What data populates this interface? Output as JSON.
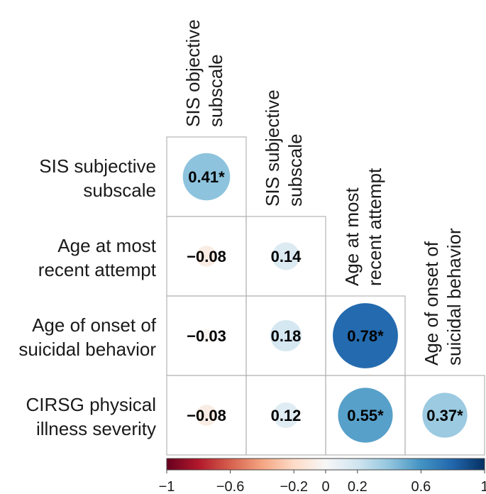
{
  "chart_data": {
    "type": "heatmap",
    "subtype": "correlation-circle-lower-triangle",
    "variables": [
      "SIS objective subscale",
      "SIS subjective subscale",
      "Age at most recent attempt",
      "Age of onset of suicidal behavior",
      "CIRSG physical illness severity"
    ],
    "row_labels": [
      [
        "SIS subjective",
        "subscale"
      ],
      [
        "Age at most",
        "recent attempt"
      ],
      [
        "Age of onset of",
        "suicidal behavior"
      ],
      [
        "CIRSG physical",
        "illness severity"
      ]
    ],
    "col_labels": [
      [
        "SIS objective",
        "subscale"
      ],
      [
        "SIS subjective",
        "subscale"
      ],
      [
        "Age at most",
        "recent attempt"
      ],
      [
        "Age of onset of",
        "suicidal behavior"
      ]
    ],
    "cells": [
      {
        "row": 0,
        "col": 0,
        "value": 0.41,
        "label": "0.41*"
      },
      {
        "row": 1,
        "col": 0,
        "value": -0.08,
        "label": "−0.08"
      },
      {
        "row": 1,
        "col": 1,
        "value": 0.14,
        "label": "0.14"
      },
      {
        "row": 2,
        "col": 0,
        "value": -0.03,
        "label": "−0.03"
      },
      {
        "row": 2,
        "col": 1,
        "value": 0.18,
        "label": "0.18"
      },
      {
        "row": 2,
        "col": 2,
        "value": 0.78,
        "label": "0.78*"
      },
      {
        "row": 3,
        "col": 0,
        "value": -0.08,
        "label": "−0.08"
      },
      {
        "row": 3,
        "col": 1,
        "value": 0.12,
        "label": "0.12"
      },
      {
        "row": 3,
        "col": 2,
        "value": 0.55,
        "label": "0.55*"
      },
      {
        "row": 3,
        "col": 3,
        "value": 0.37,
        "label": "0.37*"
      }
    ],
    "colorbar": {
      "range": [
        -1,
        1
      ],
      "ticks": [
        -1,
        -0.6,
        -0.2,
        0,
        0.2,
        0.6,
        1
      ],
      "tick_labels": [
        "−1",
        "−0.6",
        "−0.2",
        "0",
        "0.2",
        "0.6",
        "1"
      ],
      "colors": [
        "#67001f",
        "#b2182b",
        "#d6604d",
        "#f4a582",
        "#fddbc7",
        "#f7f7f7",
        "#d1e5f0",
        "#92c5de",
        "#4393c3",
        "#2166ac",
        "#053061"
      ]
    }
  }
}
